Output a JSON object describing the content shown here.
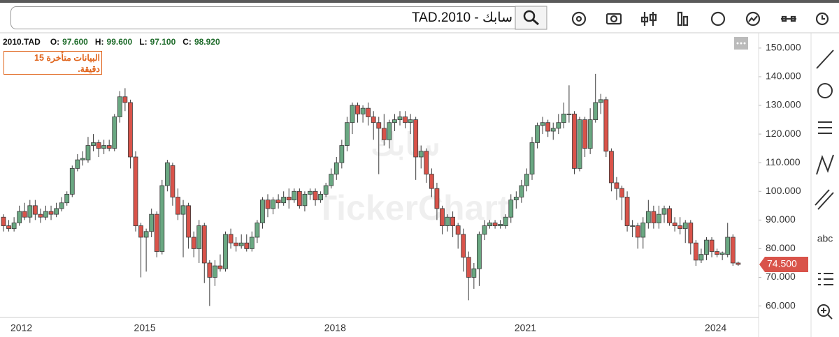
{
  "toolbar": {
    "search_text": "سابك - TAD.2010"
  },
  "ohlc_header": {
    "symbol": "2010.TAD",
    "items": [
      {
        "label": "O:",
        "value": "97.600"
      },
      {
        "label": "H:",
        "value": "99.600"
      },
      {
        "label": "L:",
        "value": "97.100"
      },
      {
        "label": "C:",
        "value": "98.920"
      }
    ]
  },
  "notice": {
    "lines": [
      "البيانات متأخرة 15",
      "دقيقة."
    ]
  },
  "watermark": {
    "arabic": "سابك",
    "latin": "TickerChart"
  },
  "right_toolbar": {
    "text_tool": "abc"
  },
  "chart_data": {
    "type": "candlestick",
    "categories": [
      "2012",
      null,
      null,
      null,
      null,
      null,
      null,
      null,
      null,
      null,
      null,
      null,
      null,
      null,
      null,
      null,
      null,
      null,
      null,
      null,
      null,
      null,
      null,
      null,
      null,
      null,
      "2015",
      null,
      null,
      null,
      null,
      null,
      null,
      null,
      null,
      null,
      null,
      null,
      null,
      null,
      null,
      null,
      null,
      null,
      null,
      null,
      null,
      null,
      null,
      null,
      null,
      null,
      null,
      null,
      null,
      null,
      null,
      null,
      null,
      null,
      null,
      null,
      "2018",
      null,
      null,
      null,
      null,
      null,
      null,
      null,
      null,
      null,
      null,
      null,
      null,
      null,
      null,
      null,
      null,
      null,
      null,
      null,
      null,
      null,
      null,
      null,
      null,
      null,
      null,
      null,
      null,
      null,
      null,
      null,
      null,
      null,
      null,
      null,
      "2021",
      null,
      null,
      null,
      null,
      null,
      null,
      null,
      null,
      null,
      null,
      null,
      null,
      null,
      null,
      null,
      null,
      null,
      null,
      null,
      null,
      null,
      null,
      null,
      null,
      null,
      null,
      null,
      null,
      null,
      null,
      null,
      null,
      null,
      null,
      null,
      "2024",
      null,
      null,
      null,
      null,
      null
    ],
    "open": [
      91,
      88,
      87,
      89,
      93,
      91,
      95,
      92,
      91,
      93,
      92,
      94,
      96,
      99,
      108,
      111,
      111,
      116,
      117,
      115,
      116,
      115,
      126,
      133,
      131,
      112,
      88,
      84,
      86,
      92,
      79,
      102,
      109,
      98,
      92,
      95,
      84,
      80,
      88,
      75,
      70,
      74,
      73,
      85,
      82,
      81,
      82,
      80,
      84,
      89,
      97,
      94,
      97,
      96,
      98,
      97,
      100,
      95,
      99,
      100,
      97,
      99,
      102,
      106,
      110,
      116,
      124,
      130,
      127,
      129,
      126,
      124,
      122,
      118,
      124,
      125,
      126,
      124,
      125,
      112,
      114,
      106,
      101,
      94,
      88,
      91,
      88,
      85,
      77,
      70,
      73,
      85,
      88,
      89,
      88,
      88,
      91,
      97,
      98,
      102,
      106,
      117,
      123,
      124,
      121,
      122,
      124,
      127,
      127,
      108,
      125,
      115,
      125,
      131,
      132,
      114,
      103,
      101,
      98,
      88,
      88,
      84,
      89,
      93,
      89,
      92,
      94,
      89,
      88,
      87,
      89,
      82,
      76,
      78,
      83,
      79,
      78,
      78,
      84,
      75
    ],
    "high": [
      92,
      90,
      91,
      95,
      96,
      97,
      97,
      94,
      95,
      95,
      96,
      98,
      100,
      109,
      113,
      114,
      119,
      120,
      118,
      118,
      118,
      127,
      135,
      136,
      132,
      114,
      89,
      87,
      94,
      93,
      104,
      111,
      110,
      101,
      97,
      96,
      86,
      90,
      89,
      76,
      76,
      78,
      86,
      87,
      84,
      85,
      85,
      86,
      90,
      98,
      99,
      98,
      99,
      100,
      101,
      101,
      101,
      100,
      101,
      101,
      100,
      103,
      108,
      112,
      118,
      126,
      131,
      131,
      130,
      131,
      128,
      126,
      127,
      125,
      127,
      128,
      128,
      127,
      126,
      116,
      115,
      108,
      103,
      95,
      92,
      93,
      89,
      87,
      79,
      75,
      86,
      90,
      90,
      90,
      90,
      92,
      99,
      100,
      104,
      108,
      119,
      124,
      126,
      125,
      124,
      127,
      131,
      137,
      128,
      126,
      126,
      129,
      141,
      134,
      133,
      115,
      105,
      102,
      100,
      90,
      89,
      91,
      97,
      95,
      95,
      95,
      95,
      91,
      91,
      90,
      90,
      83,
      80,
      84,
      84,
      80,
      79,
      89,
      85,
      75.5
    ],
    "low": [
      86,
      86,
      86,
      88,
      90,
      89,
      90,
      89,
      90,
      90,
      91,
      93,
      95,
      98,
      107,
      109,
      110,
      114,
      112,
      113,
      114,
      114,
      124,
      128,
      108,
      86,
      70,
      72,
      84,
      77,
      78,
      100,
      95,
      90,
      77,
      80,
      77,
      75,
      68,
      60,
      67,
      72,
      72,
      80,
      79,
      80,
      79,
      79,
      82,
      87,
      91,
      92,
      94,
      95,
      94,
      96,
      94,
      93,
      97,
      95,
      96,
      98,
      101,
      104,
      108,
      114,
      120,
      124,
      124,
      123,
      118,
      106,
      116,
      115,
      121,
      123,
      122,
      120,
      104,
      108,
      103,
      98,
      90,
      85,
      86,
      84,
      80,
      72,
      62,
      66,
      67,
      83,
      87,
      87,
      87,
      87,
      89,
      94,
      96,
      100,
      104,
      115,
      120,
      119,
      118,
      120,
      122,
      124,
      106,
      107,
      112,
      113,
      124,
      127,
      112,
      100,
      97,
      90,
      86,
      84,
      80,
      80,
      87,
      87,
      87,
      89,
      88,
      86,
      85,
      82,
      78,
      74,
      75,
      76,
      77,
      77,
      76,
      77,
      74,
      74
    ],
    "close": [
      88,
      87,
      89,
      93,
      91,
      95,
      92,
      91,
      93,
      92,
      94,
      96,
      99,
      108,
      111,
      111.5,
      116,
      117,
      115,
      116,
      115,
      126,
      133,
      131,
      112,
      88,
      84,
      86,
      92,
      79,
      102,
      110,
      98,
      92,
      95,
      84,
      80,
      88,
      75,
      70,
      74,
      73,
      85,
      82,
      81,
      82,
      80,
      84,
      89,
      97,
      94,
      97,
      96,
      98,
      97,
      100,
      95,
      99,
      100,
      97,
      99,
      102,
      106,
      110,
      116,
      124,
      130,
      127,
      129,
      126,
      124,
      122,
      118,
      124,
      125,
      126,
      124,
      125,
      112,
      114,
      106,
      101,
      94,
      88,
      91,
      88,
      85,
      77,
      70,
      73,
      85,
      88,
      89,
      88,
      88.5,
      91,
      97,
      98,
      102,
      106,
      117,
      123,
      124,
      121,
      122,
      124,
      127,
      127,
      108,
      125,
      115,
      125,
      131,
      132,
      114,
      103,
      101,
      98,
      88,
      88,
      84,
      89,
      93,
      89,
      92,
      94,
      89,
      88,
      87,
      89,
      82,
      76,
      78,
      83,
      79,
      78,
      78.5,
      84,
      75,
      74.5
    ],
    "up_color": "#6aa882",
    "down_color": "#d9534a",
    "wick_color": "#3a3a3a",
    "ylim": [
      56,
      154.6
    ],
    "yticks": [
      {
        "value": 60,
        "label": "60.000"
      },
      {
        "value": 70,
        "label": "70.000"
      },
      {
        "value": 80,
        "label": "80.000"
      },
      {
        "value": 90,
        "label": "90.000"
      },
      {
        "value": 100,
        "label": "100.000"
      },
      {
        "value": 110,
        "label": "110.000"
      },
      {
        "value": 120,
        "label": "120.000"
      },
      {
        "value": 130,
        "label": "130.000"
      },
      {
        "value": 140,
        "label": "140.000"
      },
      {
        "value": 150,
        "label": "150.000"
      }
    ],
    "grid": false,
    "last_price": 74.5,
    "last_price_label": "74.500",
    "last_price_color": "#d9534a"
  }
}
